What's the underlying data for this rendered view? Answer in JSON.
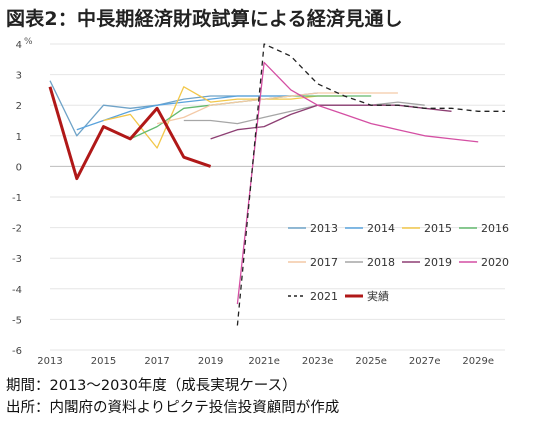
{
  "title": "図表2：中長期経済財政試算による経済見通し",
  "footnote_period": "期間：2013～2030年度（成長実現ケース）",
  "footnote_source": "出所：内閣府の資料よりピクテ投信投資顧問が作成",
  "chart_data": {
    "type": "line",
    "title": "図表2：中長期経済財政試算による経済見通し",
    "ylabel": "%",
    "xlabel": "",
    "x": [
      2013,
      2014,
      2015,
      2016,
      2017,
      2018,
      2019,
      2020,
      2021,
      2022,
      2023,
      2024,
      2025,
      2026,
      2027,
      2028,
      2029,
      2030
    ],
    "xticks": [
      "2013",
      "2015",
      "2017",
      "2019",
      "2021e",
      "2023e",
      "2025e",
      "2027e",
      "2029e"
    ],
    "yticks": [
      "4",
      "3",
      "2",
      "1",
      "0",
      "-1",
      "-2",
      "-3",
      "-4",
      "-5",
      "-6"
    ],
    "ylim": [
      -6,
      4
    ],
    "grid": "horizontal",
    "legend_position": "right",
    "series": [
      {
        "name": "2013",
        "color": "#6fa3c8",
        "dash": "solid",
        "width": 1.3,
        "points": [
          [
            2013,
            2.8
          ],
          [
            2014,
            1.0
          ],
          [
            2015,
            2.0
          ],
          [
            2016,
            1.9
          ],
          [
            2017,
            2.0
          ],
          [
            2018,
            2.2
          ],
          [
            2019,
            2.3
          ],
          [
            2020,
            2.3
          ],
          [
            2021,
            2.3
          ],
          [
            2022,
            2.3
          ]
        ]
      },
      {
        "name": "2014",
        "color": "#5aa3dd",
        "dash": "solid",
        "width": 1.3,
        "points": [
          [
            2014,
            1.2
          ],
          [
            2015,
            1.5
          ],
          [
            2016,
            1.8
          ],
          [
            2017,
            2.0
          ],
          [
            2018,
            2.1
          ],
          [
            2019,
            2.2
          ],
          [
            2020,
            2.3
          ],
          [
            2021,
            2.3
          ],
          [
            2022,
            2.3
          ],
          [
            2023,
            2.4
          ]
        ]
      },
      {
        "name": "2015",
        "color": "#f2c74a",
        "dash": "solid",
        "width": 1.3,
        "points": [
          [
            2015,
            1.5
          ],
          [
            2016,
            1.7
          ],
          [
            2017,
            0.6
          ],
          [
            2018,
            2.6
          ],
          [
            2019,
            2.1
          ],
          [
            2020,
            2.2
          ],
          [
            2021,
            2.2
          ],
          [
            2022,
            2.2
          ],
          [
            2023,
            2.3
          ],
          [
            2024,
            2.3
          ]
        ]
      },
      {
        "name": "2016",
        "color": "#63b96e",
        "dash": "solid",
        "width": 1.3,
        "points": [
          [
            2016,
            0.9
          ],
          [
            2017,
            1.3
          ],
          [
            2018,
            1.9
          ],
          [
            2019,
            2.0
          ],
          [
            2020,
            2.1
          ],
          [
            2021,
            2.2
          ],
          [
            2022,
            2.3
          ],
          [
            2023,
            2.3
          ],
          [
            2024,
            2.3
          ],
          [
            2025,
            2.3
          ]
        ]
      },
      {
        "name": "2017",
        "color": "#f3c9a6",
        "dash": "solid",
        "width": 1.3,
        "points": [
          [
            2017,
            1.4
          ],
          [
            2018,
            1.6
          ],
          [
            2019,
            2.0
          ],
          [
            2020,
            2.1
          ],
          [
            2021,
            2.2
          ],
          [
            2022,
            2.3
          ],
          [
            2023,
            2.4
          ],
          [
            2024,
            2.4
          ],
          [
            2025,
            2.4
          ],
          [
            2026,
            2.4
          ]
        ]
      },
      {
        "name": "2018",
        "color": "#a6a6a6",
        "dash": "solid",
        "width": 1.3,
        "points": [
          [
            2018,
            1.5
          ],
          [
            2019,
            1.5
          ],
          [
            2020,
            1.4
          ],
          [
            2021,
            1.6
          ],
          [
            2022,
            1.8
          ],
          [
            2023,
            2.0
          ],
          [
            2024,
            2.0
          ],
          [
            2025,
            2.0
          ],
          [
            2026,
            2.1
          ],
          [
            2027,
            2.0
          ]
        ]
      },
      {
        "name": "2019",
        "color": "#8d3f73",
        "dash": "solid",
        "width": 1.3,
        "points": [
          [
            2019,
            0.9
          ],
          [
            2020,
            1.2
          ],
          [
            2021,
            1.3
          ],
          [
            2022,
            1.7
          ],
          [
            2023,
            2.0
          ],
          [
            2024,
            2.0
          ],
          [
            2025,
            2.0
          ],
          [
            2026,
            2.0
          ],
          [
            2027,
            1.9
          ],
          [
            2028,
            1.8
          ]
        ]
      },
      {
        "name": "2020",
        "color": "#d44fa3",
        "dash": "solid",
        "width": 1.3,
        "points": [
          [
            2020,
            -4.5
          ],
          [
            2021,
            3.4
          ],
          [
            2022,
            2.5
          ],
          [
            2023,
            2.0
          ],
          [
            2024,
            1.7
          ],
          [
            2025,
            1.4
          ],
          [
            2026,
            1.2
          ],
          [
            2027,
            1.0
          ],
          [
            2028,
            0.9
          ],
          [
            2029,
            0.8
          ]
        ]
      },
      {
        "name": "2021",
        "color": "#222222",
        "dash": "dashed",
        "width": 1.3,
        "points": [
          [
            2020,
            -5.2
          ],
          [
            2021,
            4.0
          ],
          [
            2022,
            3.6
          ],
          [
            2023,
            2.7
          ],
          [
            2024,
            2.3
          ],
          [
            2025,
            2.0
          ],
          [
            2026,
            2.0
          ],
          [
            2027,
            1.9
          ],
          [
            2028,
            1.9
          ],
          [
            2029,
            1.8
          ],
          [
            2030,
            1.8
          ]
        ]
      },
      {
        "name": "実績",
        "color": "#b01818",
        "dash": "solid",
        "width": 3,
        "points": [
          [
            2013,
            2.6
          ],
          [
            2014,
            -0.4
          ],
          [
            2015,
            1.3
          ],
          [
            2016,
            0.9
          ],
          [
            2017,
            1.9
          ],
          [
            2018,
            0.3
          ],
          [
            2019,
            0.0
          ]
        ]
      }
    ]
  }
}
